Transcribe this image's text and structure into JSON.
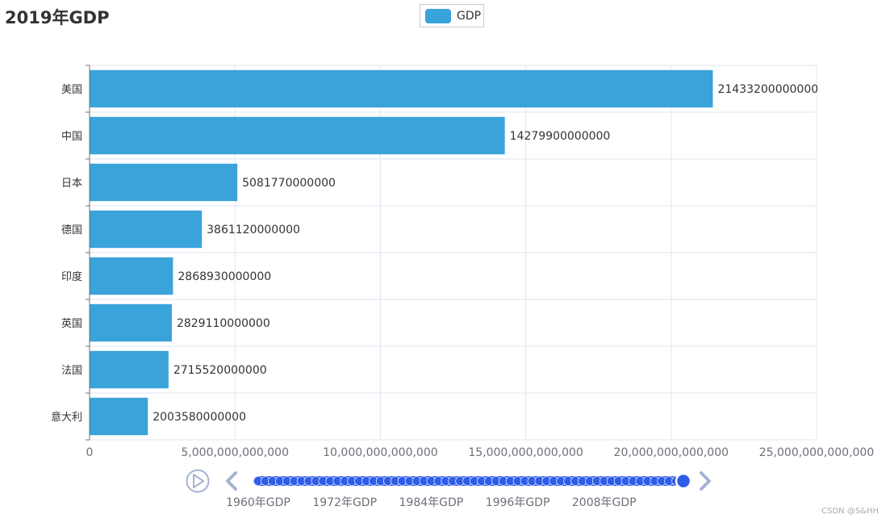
{
  "title": "2019年GDP",
  "legend": {
    "label": "GDP"
  },
  "watermark": "CSDN @S&HH",
  "colors": {
    "bar": "#3aa3da",
    "grid": "#e0e6f1",
    "axis": "#6e7079",
    "timeline_dot": "#2f5de8",
    "timeline_ctrl": "#a4b2d4"
  },
  "chart_data": {
    "type": "bar",
    "orientation": "horizontal",
    "categories": [
      "美国",
      "中国",
      "日本",
      "德国",
      "印度",
      "英国",
      "法国",
      "意大利"
    ],
    "series": [
      {
        "name": "GDP",
        "values": [
          21433200000000,
          14279900000000,
          5081770000000,
          3861120000000,
          2868930000000,
          2829110000000,
          2715520000000,
          2003580000000
        ],
        "value_labels": [
          "21433200000000",
          "14279900000000",
          "5081770000000",
          "3861120000000",
          "2868930000000",
          "2829110000000",
          "2715520000000",
          "2003580000000"
        ]
      }
    ],
    "xlim": [
      0,
      25000000000000
    ],
    "x_ticks": [
      0,
      5000000000000,
      10000000000000,
      15000000000000,
      20000000000000,
      25000000000000
    ],
    "x_tick_labels": [
      "0",
      "5,000,000,000,000",
      "10,000,000,000,000",
      "15,000,000,000,000",
      "20,000,000,000,000",
      "25,000,000,000,000"
    ],
    "grid": true,
    "legend_position": "top-center"
  },
  "timeline": {
    "labels": [
      "1960年GDP",
      "1972年GDP",
      "1984年GDP",
      "1996年GDP",
      "2008年GDP"
    ],
    "points": 60,
    "current_index": 59
  }
}
